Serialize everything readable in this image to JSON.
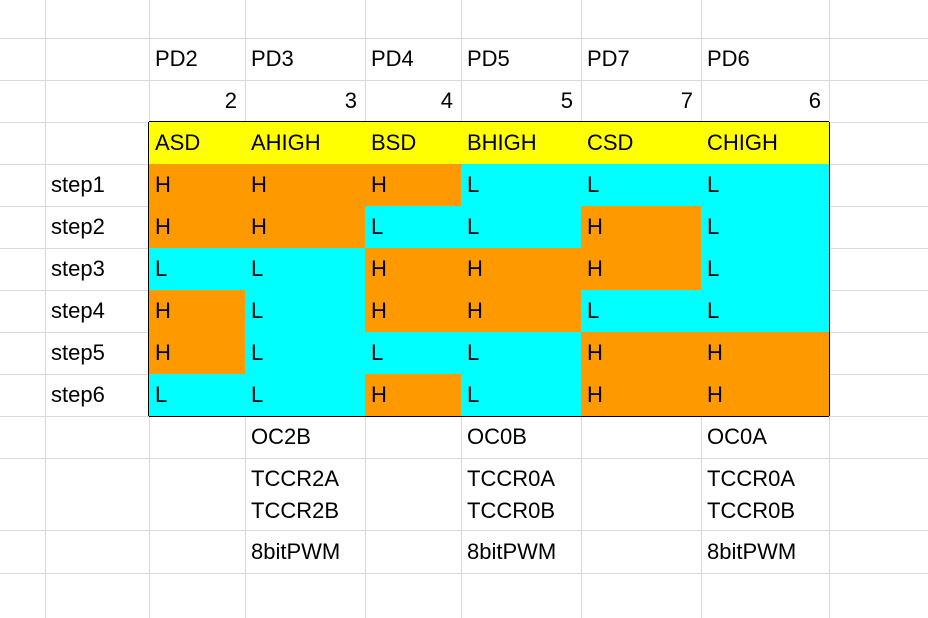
{
  "colors": {
    "gridline": "#d9d9d9",
    "border": "#000000",
    "header_fill": "#ffff00",
    "high_fill": "#ff9900",
    "low_fill": "#00ffff"
  },
  "pins": [
    "PD2",
    "PD3",
    "PD4",
    "PD5",
    "PD7",
    "PD6"
  ],
  "pin_numbers": [
    "2",
    "3",
    "4",
    "5",
    "7",
    "6"
  ],
  "signals": [
    "ASD",
    "AHIGH",
    "BSD",
    "BHIGH",
    "CSD",
    "CHIGH"
  ],
  "steps": [
    {
      "label": "step1",
      "values": [
        "H",
        "H",
        "H",
        "L",
        "L",
        "L"
      ]
    },
    {
      "label": "step2",
      "values": [
        "H",
        "H",
        "L",
        "L",
        "H",
        "L"
      ]
    },
    {
      "label": "step3",
      "values": [
        "L",
        "L",
        "H",
        "H",
        "H",
        "L"
      ]
    },
    {
      "label": "step4",
      "values": [
        "H",
        "L",
        "H",
        "H",
        "L",
        "L"
      ]
    },
    {
      "label": "step5",
      "values": [
        "H",
        "L",
        "L",
        "L",
        "H",
        "H"
      ]
    },
    {
      "label": "step6",
      "values": [
        "L",
        "L",
        "H",
        "L",
        "H",
        "H"
      ]
    }
  ],
  "notes": {
    "pd3": {
      "output": "OC2B",
      "reg1": "TCCR2A",
      "reg2": "TCCR2B",
      "mode": "8bitPWM"
    },
    "pd5": {
      "output": "OC0B",
      "reg1": "TCCR0A",
      "reg2": "TCCR0B",
      "mode": "8bitPWM"
    },
    "pd6": {
      "output": "OC0A",
      "reg1": "TCCR0A",
      "reg2": "TCCR0B",
      "mode": "8bitPWM"
    }
  }
}
